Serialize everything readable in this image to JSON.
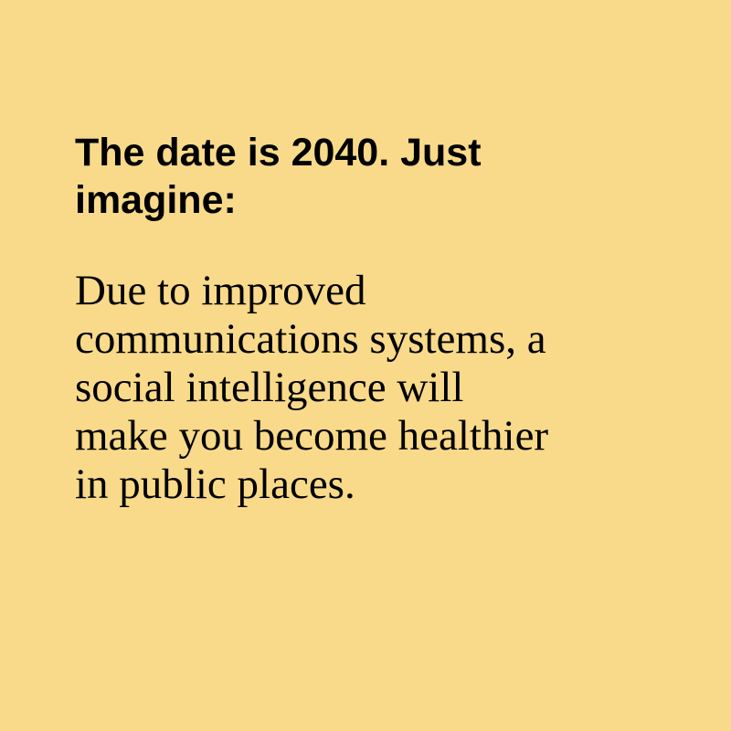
{
  "background_color": "#F8DA8A",
  "text_color": "#000000",
  "headline": {
    "lines": [
      "The date is 2040. Just",
      "imagine:"
    ]
  },
  "body": {
    "lines": [
      "Due to improved",
      "communications systems, a",
      "social intelligence will",
      "make you become healthier",
      "in public places."
    ]
  }
}
